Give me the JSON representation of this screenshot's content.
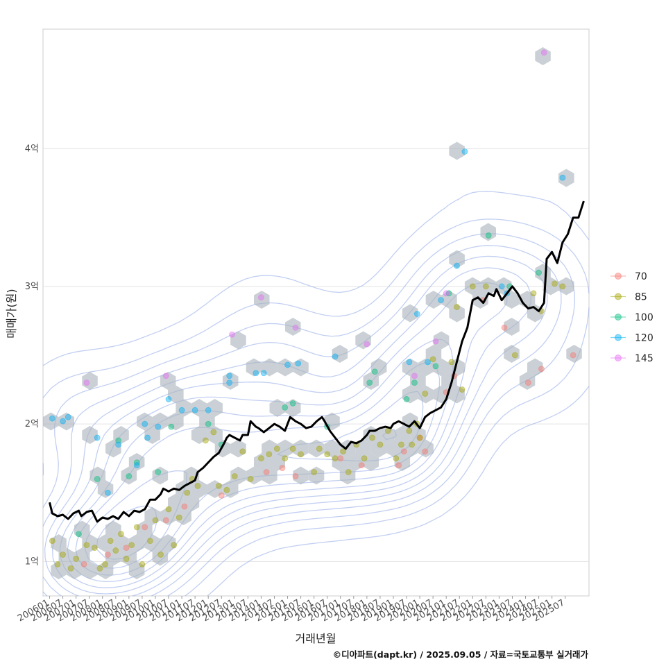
{
  "chart_data": {
    "type": "scatter",
    "xlabel": "거래년월",
    "ylabel": "매매가(원)",
    "caption": "©디아파트(dapt.kr) / 2025.09.05 / 자료=국토교통부 실거래가",
    "x_ticks": [
      "200601",
      "200607",
      "200701",
      "200707",
      "200801",
      "200807",
      "200901",
      "200907",
      "201001",
      "201007",
      "201101",
      "201107",
      "201201",
      "201207",
      "201301",
      "201307",
      "201401",
      "201407",
      "201501",
      "201507",
      "201601",
      "201607",
      "201701",
      "201707",
      "201801",
      "201807",
      "201901",
      "201907",
      "202001",
      "202007",
      "202101",
      "202107",
      "202201",
      "202207",
      "202301",
      "202307",
      "202401",
      "202407",
      "202501",
      "202507"
    ],
    "xlim": [
      2005.75,
      2026.4
    ],
    "ylim": [
      0.75,
      4.87
    ],
    "y_ticks": [
      {
        "value": 1,
        "label": "1억"
      },
      {
        "value": 2,
        "label": "2억"
      },
      {
        "value": 3,
        "label": "3억"
      },
      {
        "value": 4,
        "label": "4억"
      }
    ],
    "legend_title": "",
    "legend": [
      {
        "label": "70",
        "color": "#F8766D"
      },
      {
        "label": "85",
        "color": "#A3A500"
      },
      {
        "label": "100",
        "color": "#00BF7D"
      },
      {
        "label": "120",
        "color": "#00B0F6"
      },
      {
        "label": "145",
        "color": "#E76BF3"
      }
    ],
    "series": [
      {
        "name": "70",
        "points": [
          [
            2007.3,
            0.98
          ],
          [
            2008.2,
            1.05
          ],
          [
            2008.9,
            1.1
          ],
          [
            2009.6,
            1.25
          ],
          [
            2010.4,
            1.3
          ],
          [
            2011.1,
            1.4
          ],
          [
            2012.5,
            1.48
          ],
          [
            2014.2,
            1.65
          ],
          [
            2014.8,
            1.68
          ],
          [
            2015.3,
            1.62
          ],
          [
            2017.0,
            1.75
          ],
          [
            2017.8,
            1.7
          ],
          [
            2019.2,
            1.7
          ],
          [
            2019.4,
            1.8
          ],
          [
            2020.0,
            1.9
          ],
          [
            2020.2,
            1.8
          ],
          [
            2021.0,
            2.23
          ],
          [
            2021.3,
            2.35
          ],
          [
            2022.4,
            2.9
          ],
          [
            2023.2,
            2.7
          ],
          [
            2024.1,
            2.3
          ],
          [
            2024.6,
            2.4
          ],
          [
            2025.8,
            2.5
          ]
        ]
      },
      {
        "name": "85",
        "points": [
          [
            2006.1,
            1.15
          ],
          [
            2006.3,
            0.98
          ],
          [
            2006.5,
            1.05
          ],
          [
            2006.8,
            0.95
          ],
          [
            2007.0,
            1.02
          ],
          [
            2007.4,
            1.12
          ],
          [
            2007.7,
            1.1
          ],
          [
            2007.9,
            0.95
          ],
          [
            2008.1,
            0.98
          ],
          [
            2008.3,
            1.15
          ],
          [
            2008.5,
            1.08
          ],
          [
            2008.7,
            1.2
          ],
          [
            2008.9,
            1.02
          ],
          [
            2009.1,
            1.12
          ],
          [
            2009.3,
            1.25
          ],
          [
            2009.5,
            0.98
          ],
          [
            2009.8,
            1.15
          ],
          [
            2010.0,
            1.3
          ],
          [
            2010.2,
            1.05
          ],
          [
            2010.5,
            1.38
          ],
          [
            2010.7,
            1.12
          ],
          [
            2010.9,
            1.32
          ],
          [
            2011.2,
            1.5
          ],
          [
            2011.4,
            1.6
          ],
          [
            2011.6,
            1.55
          ],
          [
            2011.9,
            1.88
          ],
          [
            2012.2,
            1.94
          ],
          [
            2012.4,
            1.55
          ],
          [
            2012.7,
            1.52
          ],
          [
            2013.0,
            1.62
          ],
          [
            2013.3,
            1.8
          ],
          [
            2013.6,
            1.6
          ],
          [
            2014.0,
            1.75
          ],
          [
            2014.3,
            1.78
          ],
          [
            2014.6,
            1.82
          ],
          [
            2014.9,
            1.75
          ],
          [
            2015.2,
            1.82
          ],
          [
            2015.5,
            1.78
          ],
          [
            2016.0,
            1.65
          ],
          [
            2016.2,
            1.82
          ],
          [
            2016.5,
            1.78
          ],
          [
            2016.8,
            1.75
          ],
          [
            2017.1,
            1.8
          ],
          [
            2017.3,
            1.65
          ],
          [
            2017.6,
            1.85
          ],
          [
            2017.9,
            1.75
          ],
          [
            2018.2,
            1.9
          ],
          [
            2018.5,
            1.85
          ],
          [
            2018.8,
            1.95
          ],
          [
            2019.1,
            1.75
          ],
          [
            2019.3,
            1.85
          ],
          [
            2019.6,
            1.95
          ],
          [
            2019.9,
            2.0
          ],
          [
            2019.7,
            1.85
          ],
          [
            2020.0,
            1.9
          ],
          [
            2020.2,
            2.22
          ],
          [
            2020.5,
            2.47
          ],
          [
            2021.2,
            2.45
          ],
          [
            2021.4,
            2.85
          ],
          [
            2021.6,
            2.25
          ],
          [
            2022.0,
            3.0
          ],
          [
            2022.5,
            3.0
          ],
          [
            2023.6,
            2.5
          ],
          [
            2024.3,
            2.95
          ],
          [
            2024.6,
            2.82
          ],
          [
            2025.1,
            3.02
          ],
          [
            2025.4,
            3.0
          ]
        ]
      },
      {
        "name": "100",
        "points": [
          [
            2007.1,
            1.2
          ],
          [
            2007.8,
            1.6
          ],
          [
            2008.6,
            1.88
          ],
          [
            2009.0,
            1.62
          ],
          [
            2009.3,
            1.72
          ],
          [
            2010.1,
            1.65
          ],
          [
            2010.6,
            1.98
          ],
          [
            2012.0,
            2.0
          ],
          [
            2012.5,
            1.85
          ],
          [
            2014.9,
            2.12
          ],
          [
            2015.2,
            2.15
          ],
          [
            2016.5,
            1.98
          ],
          [
            2018.1,
            2.3
          ],
          [
            2018.3,
            2.38
          ],
          [
            2019.5,
            2.18
          ],
          [
            2019.8,
            2.3
          ],
          [
            2020.6,
            2.42
          ],
          [
            2021.1,
            2.95
          ],
          [
            2022.6,
            3.37
          ],
          [
            2023.4,
            3.0
          ],
          [
            2024.5,
            3.1
          ]
        ]
      },
      {
        "name": "120",
        "points": [
          [
            2006.1,
            2.04
          ],
          [
            2006.5,
            2.02
          ],
          [
            2006.7,
            2.05
          ],
          [
            2007.8,
            1.9
          ],
          [
            2008.2,
            1.5
          ],
          [
            2008.6,
            1.85
          ],
          [
            2009.3,
            1.7
          ],
          [
            2009.7,
            1.9
          ],
          [
            2009.6,
            2.0
          ],
          [
            2010.1,
            1.98
          ],
          [
            2010.5,
            2.18
          ],
          [
            2011.0,
            2.1
          ],
          [
            2011.5,
            2.1
          ],
          [
            2012.0,
            2.1
          ],
          [
            2012.8,
            2.35
          ],
          [
            2012.8,
            2.3
          ],
          [
            2013.8,
            2.37
          ],
          [
            2014.1,
            2.37
          ],
          [
            2015.0,
            2.43
          ],
          [
            2015.4,
            2.44
          ],
          [
            2016.8,
            2.49
          ],
          [
            2019.6,
            2.45
          ],
          [
            2019.9,
            2.8
          ],
          [
            2020.3,
            2.45
          ],
          [
            2020.8,
            2.9
          ],
          [
            2021.4,
            3.15
          ],
          [
            2021.7,
            3.98
          ],
          [
            2023.1,
            3.0
          ],
          [
            2023.3,
            2.95
          ],
          [
            2025.4,
            3.79
          ]
        ]
      },
      {
        "name": "145",
        "points": [
          [
            2007.4,
            2.3
          ],
          [
            2010.4,
            2.35
          ],
          [
            2012.9,
            2.65
          ],
          [
            2014.0,
            2.92
          ],
          [
            2015.3,
            2.7
          ],
          [
            2018.0,
            2.58
          ],
          [
            2019.8,
            2.35
          ],
          [
            2020.6,
            2.6
          ],
          [
            2021.0,
            2.95
          ],
          [
            2024.7,
            4.7
          ]
        ]
      }
    ],
    "trend_line": {
      "name": "median",
      "color": "#000000",
      "points": [
        [
          2006.0,
          1.43
        ],
        [
          2006.1,
          1.35
        ],
        [
          2006.3,
          1.33
        ],
        [
          2006.5,
          1.34
        ],
        [
          2006.7,
          1.31
        ],
        [
          2006.9,
          1.35
        ],
        [
          2007.1,
          1.37
        ],
        [
          2007.2,
          1.33
        ],
        [
          2007.4,
          1.36
        ],
        [
          2007.6,
          1.37
        ],
        [
          2007.8,
          1.29
        ],
        [
          2008.0,
          1.32
        ],
        [
          2008.2,
          1.31
        ],
        [
          2008.4,
          1.33
        ],
        [
          2008.6,
          1.31
        ],
        [
          2008.8,
          1.36
        ],
        [
          2009.0,
          1.33
        ],
        [
          2009.2,
          1.37
        ],
        [
          2009.4,
          1.36
        ],
        [
          2009.6,
          1.38
        ],
        [
          2009.8,
          1.45
        ],
        [
          2010.0,
          1.45
        ],
        [
          2010.2,
          1.49
        ],
        [
          2010.3,
          1.53
        ],
        [
          2010.5,
          1.51
        ],
        [
          2010.7,
          1.53
        ],
        [
          2010.9,
          1.52
        ],
        [
          2011.1,
          1.55
        ],
        [
          2011.3,
          1.57
        ],
        [
          2011.5,
          1.59
        ],
        [
          2011.6,
          1.65
        ],
        [
          2011.8,
          1.68
        ],
        [
          2012.0,
          1.72
        ],
        [
          2012.2,
          1.76
        ],
        [
          2012.4,
          1.79
        ],
        [
          2012.6,
          1.86
        ],
        [
          2012.7,
          1.9
        ],
        [
          2012.8,
          1.92
        ],
        [
          2013.0,
          1.9
        ],
        [
          2013.2,
          1.88
        ],
        [
          2013.3,
          1.92
        ],
        [
          2013.5,
          1.92
        ],
        [
          2013.6,
          2.02
        ],
        [
          2013.8,
          1.98
        ],
        [
          2013.9,
          1.97
        ],
        [
          2014.1,
          1.94
        ],
        [
          2014.3,
          1.97
        ],
        [
          2014.5,
          2.0
        ],
        [
          2014.7,
          1.98
        ],
        [
          2014.9,
          1.95
        ],
        [
          2015.1,
          2.05
        ],
        [
          2015.3,
          2.02
        ],
        [
          2015.5,
          2.0
        ],
        [
          2015.7,
          1.97
        ],
        [
          2015.9,
          1.98
        ],
        [
          2016.1,
          2.02
        ],
        [
          2016.3,
          2.05
        ],
        [
          2016.4,
          2.02
        ],
        [
          2016.6,
          1.95
        ],
        [
          2016.8,
          1.9
        ],
        [
          2017.0,
          1.85
        ],
        [
          2017.2,
          1.82
        ],
        [
          2017.4,
          1.87
        ],
        [
          2017.6,
          1.86
        ],
        [
          2017.8,
          1.88
        ],
        [
          2018.0,
          1.92
        ],
        [
          2018.1,
          1.95
        ],
        [
          2018.3,
          1.95
        ],
        [
          2018.5,
          1.97
        ],
        [
          2018.7,
          1.98
        ],
        [
          2018.9,
          1.97
        ],
        [
          2019.0,
          2.0
        ],
        [
          2019.2,
          2.02
        ],
        [
          2019.4,
          2.0
        ],
        [
          2019.6,
          1.98
        ],
        [
          2019.8,
          2.02
        ],
        [
          2020.0,
          1.97
        ],
        [
          2020.2,
          2.05
        ],
        [
          2020.4,
          2.08
        ],
        [
          2020.6,
          2.1
        ],
        [
          2020.8,
          2.12
        ],
        [
          2021.0,
          2.18
        ],
        [
          2021.2,
          2.3
        ],
        [
          2021.4,
          2.45
        ],
        [
          2021.6,
          2.6
        ],
        [
          2021.8,
          2.7
        ],
        [
          2022.0,
          2.9
        ],
        [
          2022.2,
          2.92
        ],
        [
          2022.4,
          2.88
        ],
        [
          2022.6,
          2.95
        ],
        [
          2022.8,
          2.93
        ],
        [
          2022.9,
          2.98
        ],
        [
          2023.1,
          2.9
        ],
        [
          2023.3,
          2.95
        ],
        [
          2023.5,
          3.0
        ],
        [
          2023.7,
          2.95
        ],
        [
          2023.9,
          2.88
        ],
        [
          2024.1,
          2.84
        ],
        [
          2024.3,
          2.85
        ],
        [
          2024.5,
          2.82
        ],
        [
          2024.7,
          2.88
        ],
        [
          2024.8,
          3.2
        ],
        [
          2025.0,
          3.25
        ],
        [
          2025.2,
          3.17
        ],
        [
          2025.4,
          3.32
        ],
        [
          2025.6,
          3.38
        ],
        [
          2025.8,
          3.5
        ],
        [
          2026.0,
          3.5
        ],
        [
          2026.2,
          3.62
        ]
      ]
    }
  }
}
